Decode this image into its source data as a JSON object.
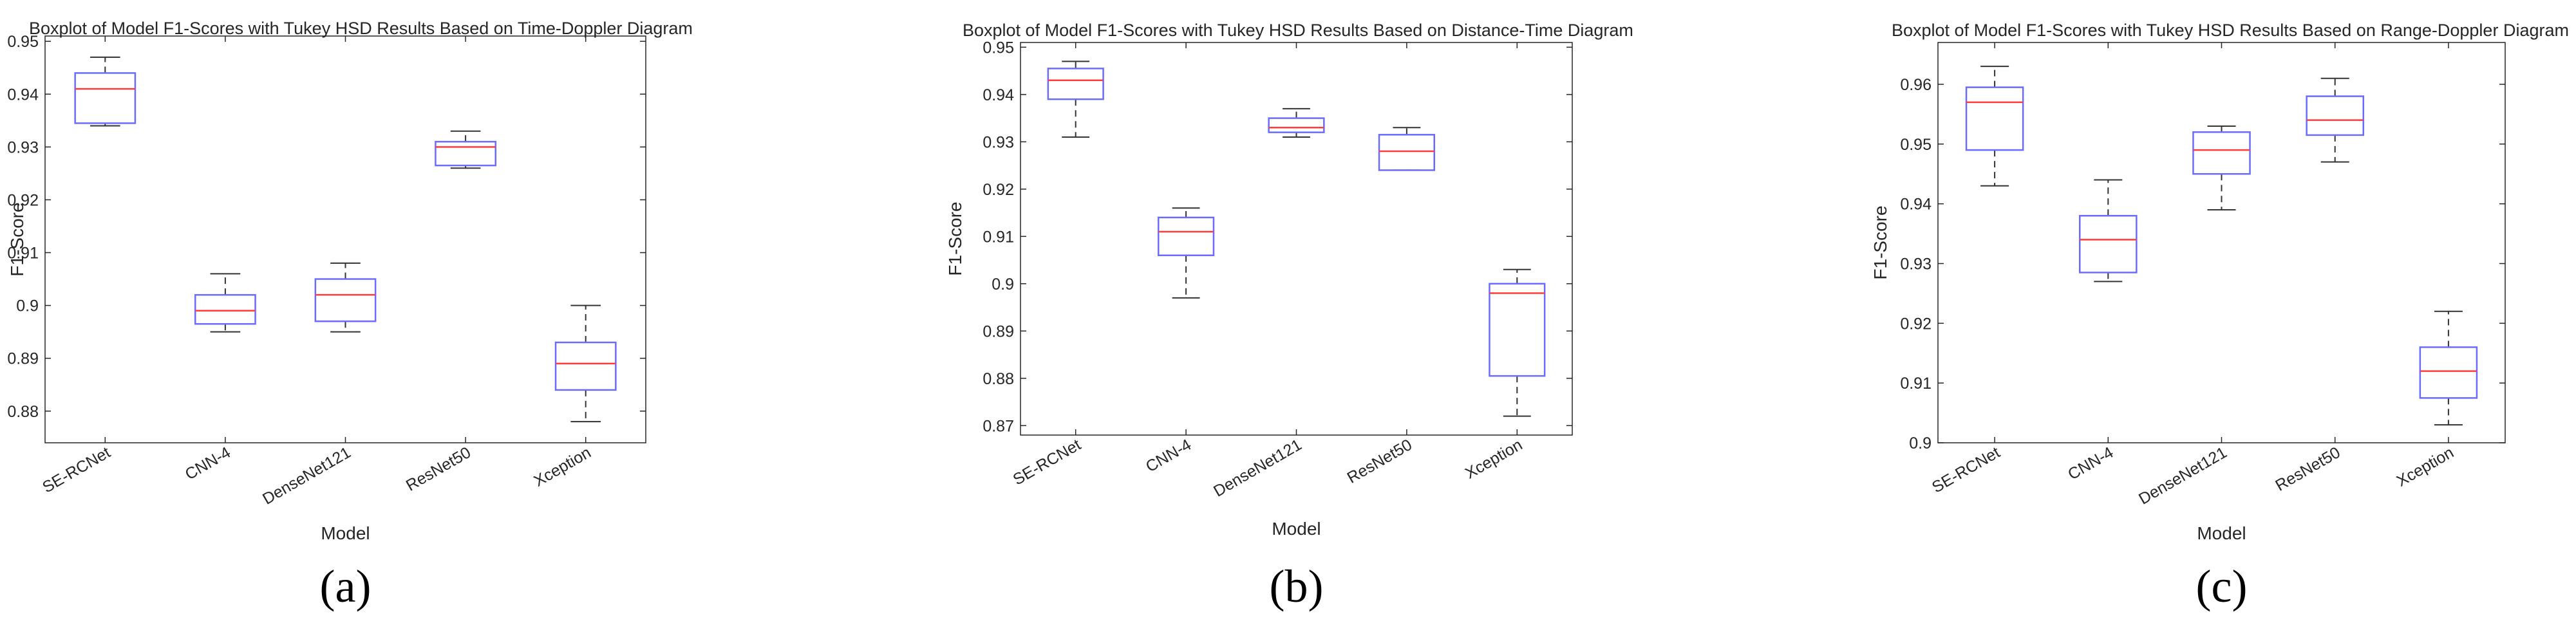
{
  "chart_data": [
    {
      "type": "boxplot",
      "panel_label": "(a)",
      "title": "Boxplot of Model F1-Scores with Tukey HSD Results Based on Time-Doppler Diagram",
      "xlabel": "Model",
      "ylabel": "F1-Score",
      "ylim": [
        0.874,
        0.951
      ],
      "yticks": [
        0.88,
        0.89,
        0.9,
        0.91,
        0.92,
        0.93,
        0.94,
        0.95
      ],
      "ytick_labels": [
        "0.88",
        "0.89",
        "0.9",
        "0.91",
        "0.92",
        "0.93",
        "0.94",
        "0.95"
      ],
      "categories": [
        "SE-RCNet",
        "CNN-4",
        "DenseNet121",
        "ResNet50",
        "Xception"
      ],
      "boxes": [
        {
          "min": 0.934,
          "q1": 0.9345,
          "median": 0.941,
          "q3": 0.944,
          "max": 0.947
        },
        {
          "min": 0.895,
          "q1": 0.8965,
          "median": 0.899,
          "q3": 0.902,
          "max": 0.906
        },
        {
          "min": 0.895,
          "q1": 0.897,
          "median": 0.902,
          "q3": 0.905,
          "max": 0.908
        },
        {
          "min": 0.926,
          "q1": 0.9265,
          "median": 0.93,
          "q3": 0.931,
          "max": 0.933
        },
        {
          "min": 0.878,
          "q1": 0.884,
          "median": 0.889,
          "q3": 0.893,
          "max": 0.9
        }
      ]
    },
    {
      "type": "boxplot",
      "panel_label": "(b)",
      "title": "Boxplot of Model F1-Scores with Tukey HSD Results Based on Distance-Time Diagram",
      "xlabel": "Model",
      "ylabel": "F1-Score",
      "ylim": [
        0.868,
        0.951
      ],
      "yticks": [
        0.87,
        0.88,
        0.89,
        0.9,
        0.91,
        0.92,
        0.93,
        0.94,
        0.95
      ],
      "ytick_labels": [
        "0.87",
        "0.88",
        "0.89",
        "0.9",
        "0.91",
        "0.92",
        "0.93",
        "0.94",
        "0.95"
      ],
      "categories": [
        "SE-RCNet",
        "CNN-4",
        "DenseNet121",
        "ResNet50",
        "Xception"
      ],
      "boxes": [
        {
          "min": 0.931,
          "q1": 0.939,
          "median": 0.943,
          "q3": 0.9455,
          "max": 0.947
        },
        {
          "min": 0.897,
          "q1": 0.906,
          "median": 0.911,
          "q3": 0.914,
          "max": 0.916
        },
        {
          "min": 0.931,
          "q1": 0.932,
          "median": 0.933,
          "q3": 0.935,
          "max": 0.937
        },
        {
          "min": 0.924,
          "q1": 0.924,
          "median": 0.928,
          "q3": 0.9315,
          "max": 0.933
        },
        {
          "min": 0.872,
          "q1": 0.8805,
          "median": 0.898,
          "q3": 0.9,
          "max": 0.903
        }
      ]
    },
    {
      "type": "boxplot",
      "panel_label": "(c)",
      "title": "Boxplot of Model F1-Scores with Tukey HSD Results Based on Range-Doppler Diagram",
      "xlabel": "Model",
      "ylabel": "F1-Score",
      "ylim": [
        0.9,
        0.967
      ],
      "yticks": [
        0.9,
        0.91,
        0.92,
        0.93,
        0.94,
        0.95,
        0.96
      ],
      "ytick_labels": [
        "0.9",
        "0.91",
        "0.92",
        "0.93",
        "0.94",
        "0.95",
        "0.96"
      ],
      "categories": [
        "SE-RCNet",
        "CNN-4",
        "DenseNet121",
        "ResNet50",
        "Xception"
      ],
      "boxes": [
        {
          "min": 0.943,
          "q1": 0.949,
          "median": 0.957,
          "q3": 0.9595,
          "max": 0.963
        },
        {
          "min": 0.927,
          "q1": 0.9285,
          "median": 0.934,
          "q3": 0.938,
          "max": 0.944
        },
        {
          "min": 0.939,
          "q1": 0.945,
          "median": 0.949,
          "q3": 0.952,
          "max": 0.953
        },
        {
          "min": 0.947,
          "q1": 0.9515,
          "median": 0.954,
          "q3": 0.958,
          "max": 0.961
        },
        {
          "min": 0.903,
          "q1": 0.9075,
          "median": 0.912,
          "q3": 0.916,
          "max": 0.922
        }
      ]
    }
  ],
  "colors": {
    "box": "#6b6bff",
    "median": "#ff3b3b",
    "whisker": "#333333",
    "axis": "#262626"
  }
}
